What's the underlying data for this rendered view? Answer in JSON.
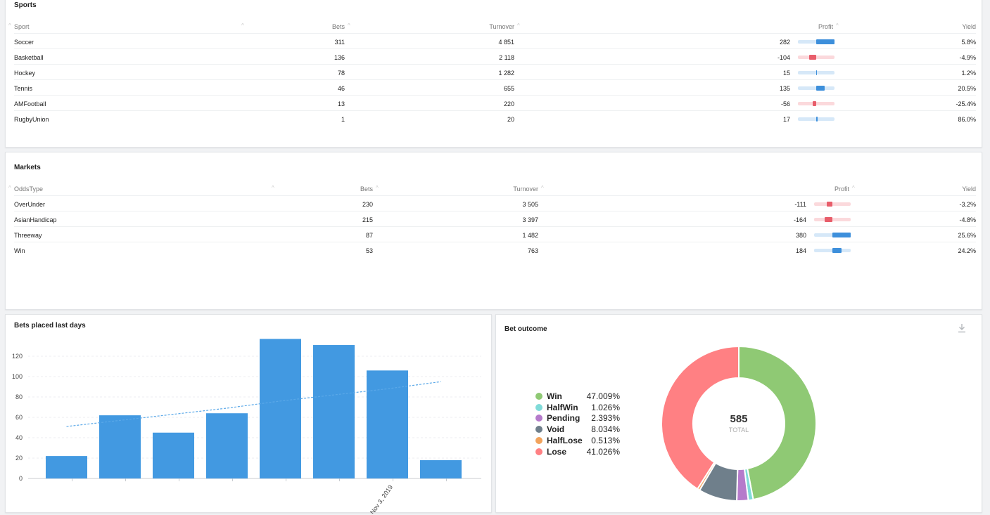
{
  "sports": {
    "title": "Sports",
    "headers": {
      "name": "Sport",
      "bets": "Bets",
      "turnover": "Turnover",
      "profit": "Profit",
      "yield": "Yield"
    },
    "rows": [
      {
        "name": "Soccer",
        "bets": "311",
        "turnover": "4 851",
        "profit": "282",
        "profit_value": 282,
        "yield": "5.8%"
      },
      {
        "name": "Basketball",
        "bets": "136",
        "turnover": "2 118",
        "profit": "-104",
        "profit_value": -104,
        "yield": "-4.9%"
      },
      {
        "name": "Hockey",
        "bets": "78",
        "turnover": "1 282",
        "profit": "15",
        "profit_value": 15,
        "yield": "1.2%"
      },
      {
        "name": "Tennis",
        "bets": "46",
        "turnover": "655",
        "profit": "135",
        "profit_value": 135,
        "yield": "20.5%"
      },
      {
        "name": "AMFootball",
        "bets": "13",
        "turnover": "220",
        "profit": "-56",
        "profit_value": -56,
        "yield": "-25.4%"
      },
      {
        "name": "RugbyUnion",
        "bets": "1",
        "turnover": "20",
        "profit": "17",
        "profit_value": 17,
        "yield": "86.0%"
      }
    ]
  },
  "markets": {
    "title": "Markets",
    "headers": {
      "name": "OddsType",
      "bets": "Bets",
      "turnover": "Turnover",
      "profit": "Profit",
      "yield": "Yield"
    },
    "rows": [
      {
        "name": "OverUnder",
        "bets": "230",
        "turnover": "3 505",
        "profit": "-111",
        "profit_value": -111,
        "yield": "-3.2%"
      },
      {
        "name": "AsianHandicap",
        "bets": "215",
        "turnover": "3 397",
        "profit": "-164",
        "profit_value": -164,
        "yield": "-4.8%"
      },
      {
        "name": "Threeway",
        "bets": "87",
        "turnover": "1 482",
        "profit": "380",
        "profit_value": 380,
        "yield": "25.6%"
      },
      {
        "name": "Win",
        "bets": "53",
        "turnover": "763",
        "profit": "184",
        "profit_value": 184,
        "yield": "24.2%"
      }
    ]
  },
  "bets_chart": {
    "title": "Bets placed last days",
    "x_label": "Nov 3, 2019"
  },
  "outcome": {
    "title": "Bet outcome",
    "total": "585",
    "total_label": "TOTAL",
    "download_icon": "download-icon"
  },
  "colors": {
    "bar": "#4299e1",
    "positive": "#3d8fdb",
    "negative": "#e85d6a",
    "positive_track": "#d6e8f8",
    "negative_track": "#fbd9dc"
  },
  "chart_data": [
    {
      "type": "bar",
      "title": "Bets placed last days",
      "categories": [
        "",
        "",
        "",
        "",
        "",
        "",
        "",
        ""
      ],
      "values": [
        22,
        62,
        45,
        64,
        137,
        131,
        106,
        18
      ],
      "trend": {
        "type": "line",
        "style": "dashed",
        "values": [
          51,
          57,
          63,
          69,
          76,
          82,
          88,
          95
        ]
      },
      "ylim": [
        0,
        140
      ],
      "yticks": [
        0,
        20,
        40,
        60,
        80,
        100,
        120
      ],
      "x_tick_labels": [
        {
          "index": 6,
          "label": "Nov 3, 2019"
        }
      ],
      "grid": true
    },
    {
      "type": "pie",
      "title": "Bet outcome",
      "donut": true,
      "total": "585",
      "slices": [
        {
          "name": "Win",
          "value": 47.009,
          "label": "47.009%",
          "color": "#8fc974"
        },
        {
          "name": "HalfWin",
          "value": 1.026,
          "label": "1.026%",
          "color": "#80dbd9"
        },
        {
          "name": "Pending",
          "value": 2.393,
          "label": "2.393%",
          "color": "#b57bcb"
        },
        {
          "name": "Void",
          "value": 8.034,
          "label": "8.034%",
          "color": "#6f7f8b"
        },
        {
          "name": "HalfLose",
          "value": 0.513,
          "label": "0.513%",
          "color": "#f2a35c"
        },
        {
          "name": "Lose",
          "value": 41.026,
          "label": "41.026%",
          "color": "#ff8083"
        }
      ],
      "legend": "left"
    }
  ]
}
